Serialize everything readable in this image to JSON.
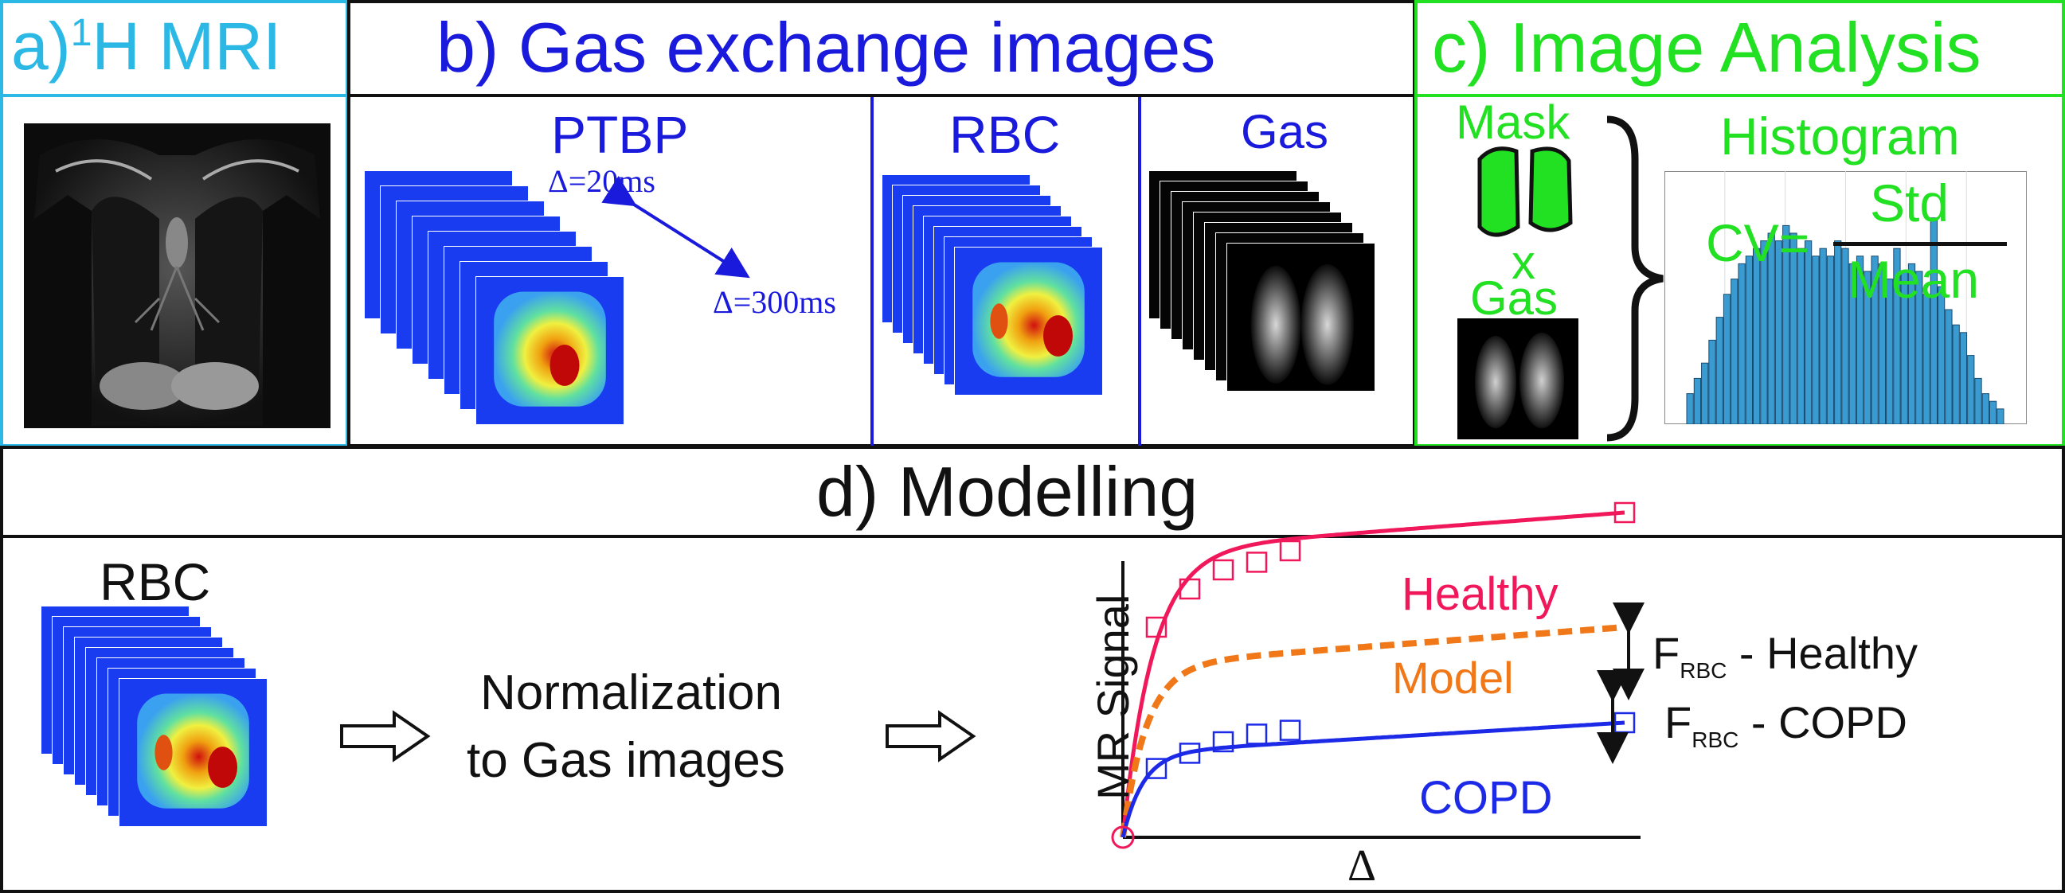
{
  "colors": {
    "panel_a": "#2bb8e4",
    "panel_b": "#1a1adc",
    "panel_c": "#22e022",
    "panel_d": "#111111",
    "healthy": "#f0185a",
    "model": "#f07818",
    "copd": "#1c2ae8",
    "histogram_bar": "#3a9bd0"
  },
  "panel_a": {
    "title_prefix": "a)",
    "title_sup": "1",
    "title_rest": "H MRI",
    "image_icon": "coronal-mri-image"
  },
  "panel_b": {
    "title": "b) Gas exchange images",
    "ptbp_label": "PTBP",
    "delta_min": "Δ=20ms",
    "delta_max": "Δ=300ms",
    "rbc_label": "RBC",
    "gas_label": "Gas"
  },
  "panel_c": {
    "title": "c) Image Analysis",
    "mask_label": "Mask",
    "times_symbol": "x",
    "gas_label": "Gas",
    "histogram_label": "Histogram",
    "cv_label": "CV=",
    "cv_numerator": "Std",
    "cv_denominator": "Mean"
  },
  "panel_d": {
    "title": "d) Modelling",
    "rbc_label": "RBC",
    "normalization_line1": "Normalization",
    "normalization_line2": "to Gas images",
    "healthy_label": "Healthy",
    "model_label": "Model",
    "copd_label": "COPD",
    "y_axis_label": "MR Signal",
    "x_axis_label": "Δ",
    "frbc_healthy": {
      "main": "F",
      "sub": "RBC",
      "rest": " - Healthy"
    },
    "frbc_copd": {
      "main": "F",
      "sub": "RBC",
      "rest": " - COPD"
    }
  },
  "chart_data": {
    "type": "line",
    "title": "",
    "xlabel": "Δ",
    "ylabel": "MR Signal",
    "series": [
      {
        "name": "Healthy",
        "style": "solid",
        "x": [
          0,
          20,
          40,
          60,
          80,
          100,
          300
        ],
        "y": [
          0,
          0.55,
          0.65,
          0.7,
          0.72,
          0.75,
          0.85
        ]
      },
      {
        "name": "Model",
        "style": "dashed",
        "x": [
          0,
          300
        ],
        "y": [
          0,
          0.55
        ]
      },
      {
        "name": "COPD",
        "style": "solid",
        "x": [
          0,
          20,
          40,
          60,
          80,
          100,
          300
        ],
        "y": [
          0,
          0.18,
          0.22,
          0.25,
          0.27,
          0.28,
          0.3
        ]
      }
    ]
  },
  "histogram_bins": [
    4,
    6,
    8,
    11,
    14,
    17,
    19,
    21,
    22,
    23,
    24,
    25,
    24,
    26,
    25,
    23,
    24,
    22,
    23,
    22,
    24,
    23,
    21,
    22,
    20,
    22,
    21,
    19,
    23,
    20,
    21,
    20,
    17,
    27,
    18,
    15,
    13,
    12,
    9,
    6,
    4,
    3,
    2
  ]
}
